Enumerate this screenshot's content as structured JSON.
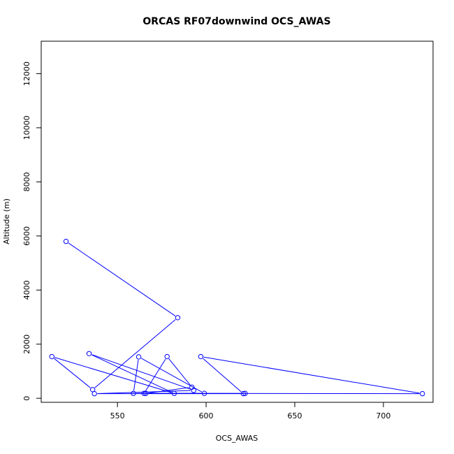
{
  "chart_data": {
    "type": "line",
    "title": "ORCAS RF07downwind OCS_AWAS",
    "xlabel": "OCS_AWAS",
    "ylabel": "Altitude (m)",
    "xlim": [
      507,
      728
    ],
    "ylim": [
      -150,
      13200
    ],
    "x_ticks": [
      550,
      600,
      650,
      700
    ],
    "y_ticks": [
      0,
      2000,
      4000,
      6000,
      8000,
      10000,
      12000
    ],
    "grid": false,
    "series": [
      {
        "color": "#0000ff",
        "points": [
          {
            "x": 521,
            "y": 5800
          },
          {
            "x": 584,
            "y": 2980
          },
          {
            "x": 536,
            "y": 320
          },
          {
            "x": 513,
            "y": 1540
          },
          {
            "x": 582,
            "y": 180
          },
          {
            "x": 534,
            "y": 1650
          },
          {
            "x": 593,
            "y": 290
          },
          {
            "x": 537,
            "y": 170
          },
          {
            "x": 621,
            "y": 170
          },
          {
            "x": 597,
            "y": 1540
          },
          {
            "x": 722,
            "y": 170
          },
          {
            "x": 559,
            "y": 180
          },
          {
            "x": 562,
            "y": 1530
          },
          {
            "x": 599,
            "y": 180
          },
          {
            "x": 565,
            "y": 180
          },
          {
            "x": 578,
            "y": 1540
          },
          {
            "x": 592,
            "y": 410
          },
          {
            "x": 566,
            "y": 180
          },
          {
            "x": 622,
            "y": 180
          }
        ]
      }
    ]
  }
}
